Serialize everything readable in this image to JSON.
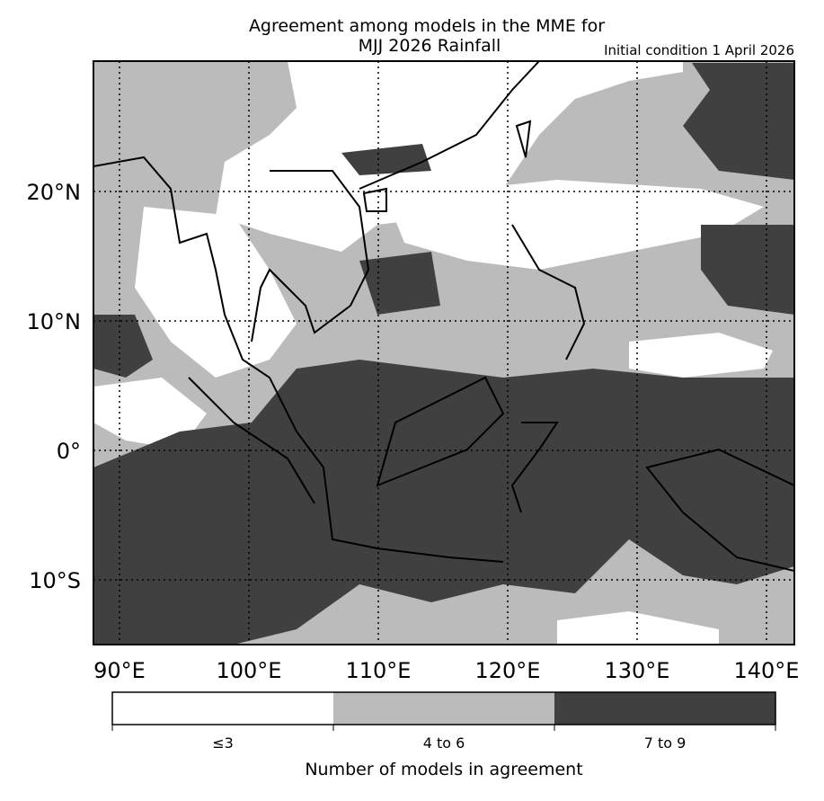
{
  "map": {
    "title": "Agreement among models in the MME for",
    "subtitle": "MJJ 2026  Rainfall",
    "note": "Initial condition 1 April 2026",
    "lat_labels": [
      "20°N",
      "10°N",
      "0°",
      "10°S"
    ],
    "lon_labels": [
      "90°E",
      "100°E",
      "110°E",
      "120°E",
      "130°E",
      "140°E"
    ],
    "legend": {
      "title": "Number of models in agreement",
      "entries": [
        {
          "label": "≤3",
          "color": "#ffffff"
        },
        {
          "label": "4 to 6",
          "color": "#bbbbbb"
        },
        {
          "label": "7 to 9",
          "color": "#404040"
        }
      ]
    }
  }
}
